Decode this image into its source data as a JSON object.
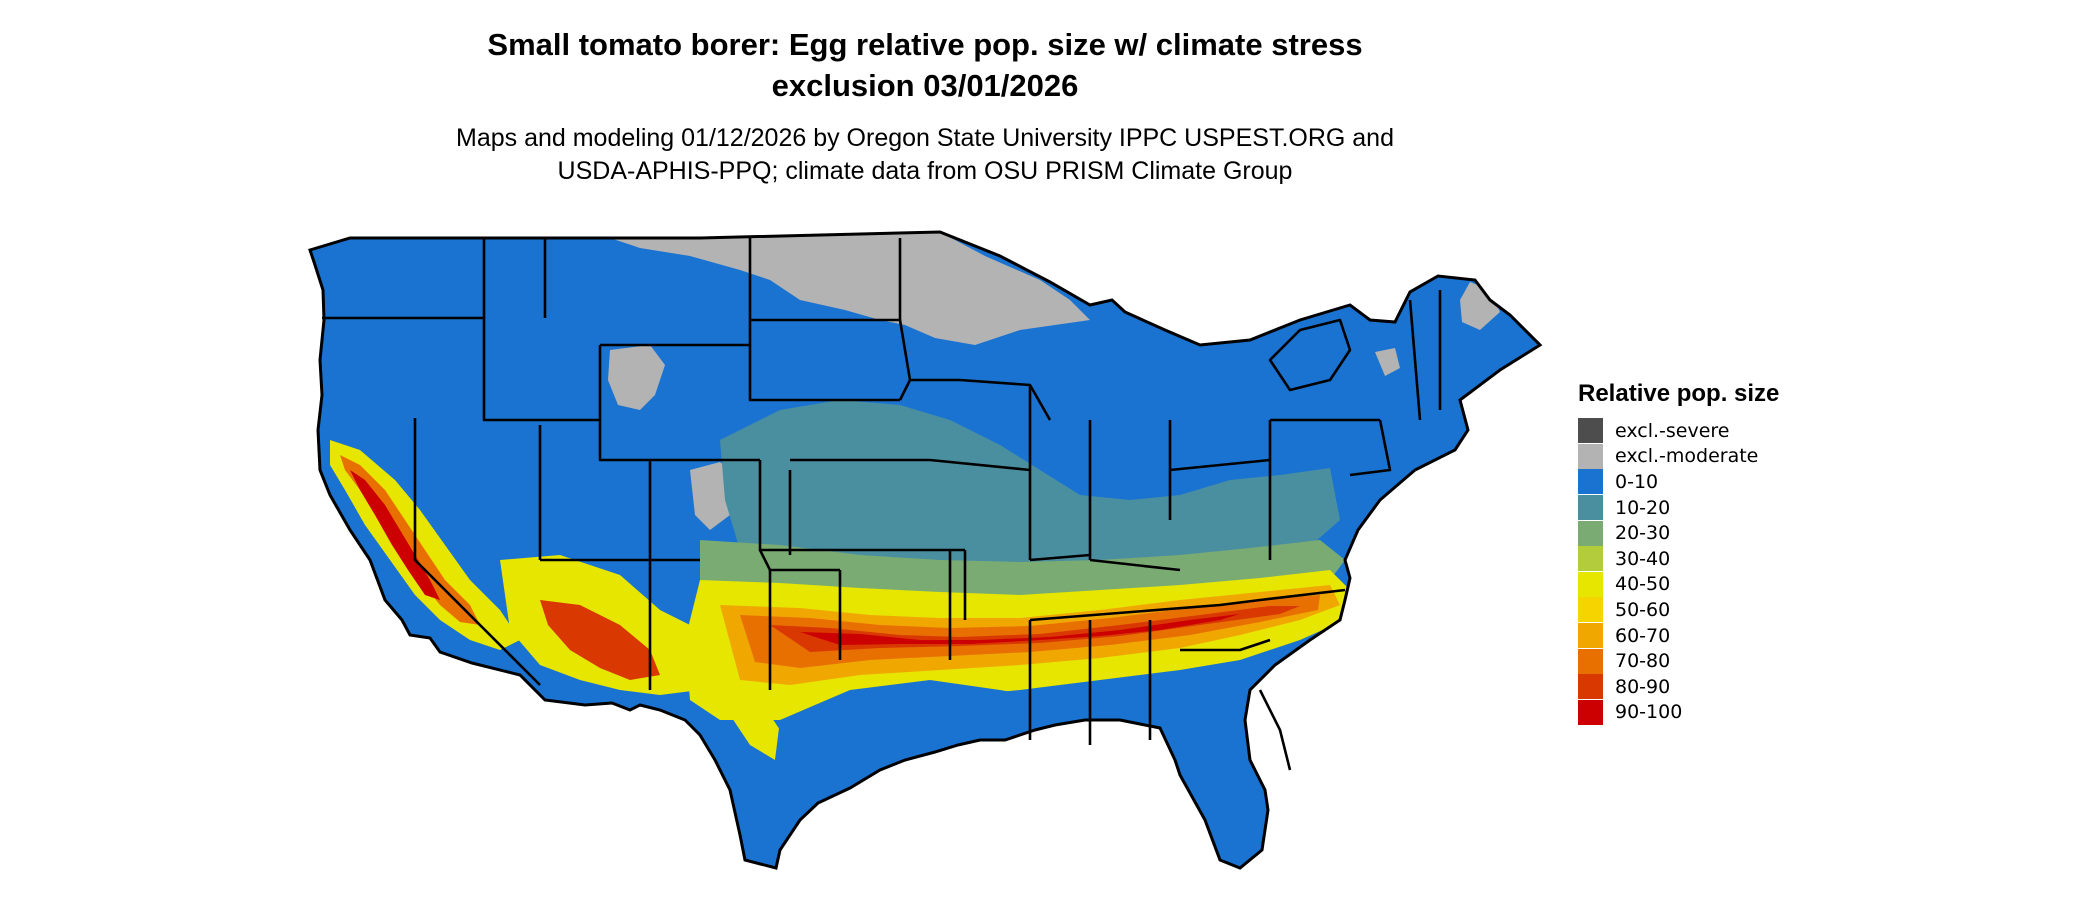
{
  "title": {
    "line1": "Small tomato borer: Egg relative pop. size w/ climate stress",
    "line2": "exclusion 03/01/2026"
  },
  "subtitle": {
    "line1": "Maps and modeling 01/12/2026 by Oregon State University IPPC USPEST.ORG and",
    "line2": "USDA-APHIS-PPQ; climate data from OSU PRISM Climate Group"
  },
  "legend": {
    "title": "Relative pop. size",
    "items": [
      {
        "label": "excl.-severe",
        "color": "#4d4d4d"
      },
      {
        "label": "excl.-moderate",
        "color": "#b3b3b3"
      },
      {
        "label": "0-10",
        "color": "#1a73d0"
      },
      {
        "label": "10-20",
        "color": "#4a8fa0"
      },
      {
        "label": "20-30",
        "color": "#7aab72"
      },
      {
        "label": "30-40",
        "color": "#b2cc3c"
      },
      {
        "label": "40-50",
        "color": "#e6e600"
      },
      {
        "label": "50-60",
        "color": "#f5d400"
      },
      {
        "label": "60-70",
        "color": "#f0a800"
      },
      {
        "label": "70-80",
        "color": "#e87000"
      },
      {
        "label": "80-90",
        "color": "#d93800"
      },
      {
        "label": "90-100",
        "color": "#cc0000"
      }
    ]
  },
  "map": {
    "region": "contiguous United States",
    "colors": {
      "border": "#000000",
      "excl_moderate": "#b3b3b3",
      "band_0_10": "#1a73d0",
      "band_10_20": "#4a8fa0",
      "band_20_30": "#7aab72",
      "band_30_40": "#b2cc3c",
      "band_40_50": "#e6e600",
      "band_60_70": "#f0a800",
      "band_70_80": "#e87000",
      "band_80_90": "#d93800",
      "band_90_100": "#cc0000"
    }
  }
}
